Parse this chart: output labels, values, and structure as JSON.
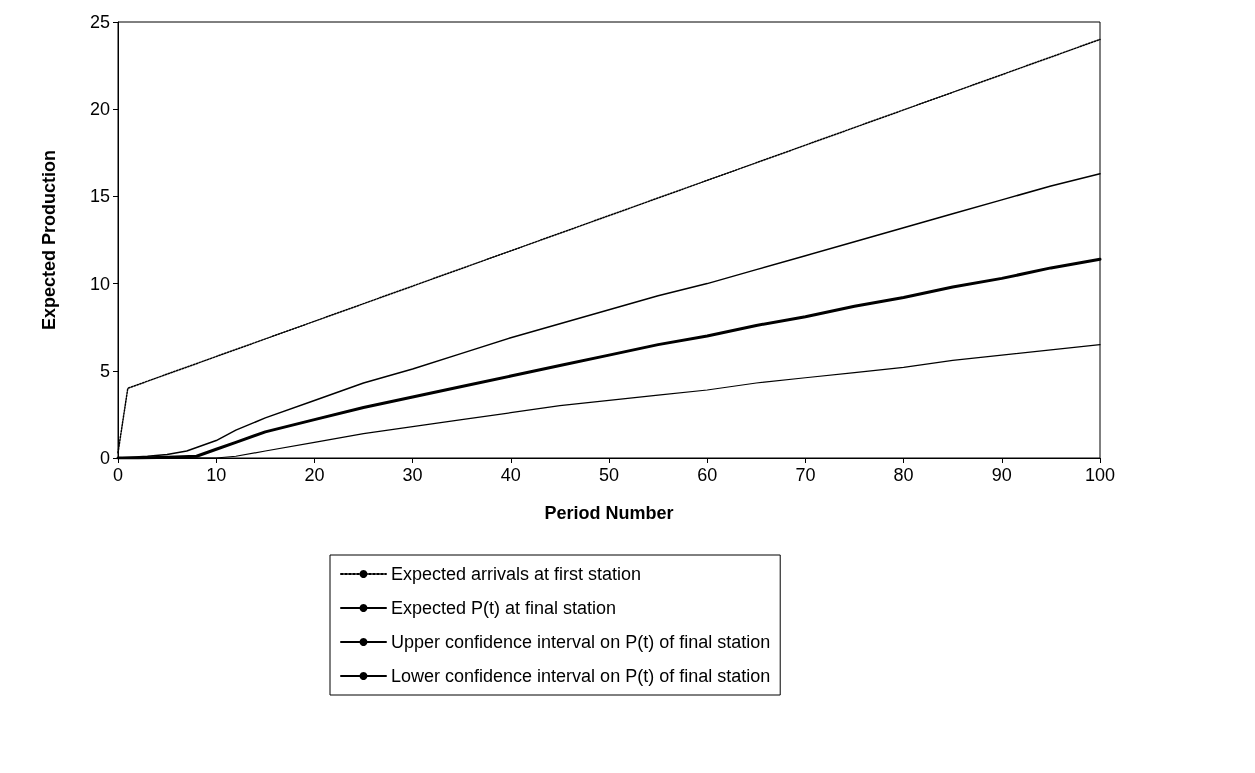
{
  "chart_data": {
    "type": "line",
    "xlabel": "Period Number",
    "ylabel": "Expected Production",
    "xlim": [
      0,
      100
    ],
    "xticks": [
      0,
      10,
      20,
      30,
      40,
      50,
      60,
      70,
      80,
      90,
      100
    ],
    "ylim": [
      0,
      25
    ],
    "yticks": [
      0,
      5,
      10,
      15,
      20,
      25
    ],
    "grid": false,
    "legend": "bottom",
    "marker": "none",
    "series": [
      {
        "name": "Expected arrivals at first station",
        "color": "#000000",
        "line_style": "dotted",
        "x": [
          0,
          1,
          100
        ],
        "values": [
          0.3,
          4,
          24
        ]
      },
      {
        "name": "Expected P(t) at final station",
        "color": "#000000",
        "line_style": "solid",
        "x": [
          0,
          2,
          5,
          8,
          10,
          12,
          15,
          20,
          25,
          30,
          35,
          40,
          45,
          50,
          55,
          60,
          65,
          70,
          75,
          80,
          85,
          90,
          95,
          100
        ],
        "values": [
          0,
          0,
          0.05,
          0.1,
          0.5,
          0.9,
          1.5,
          2.2,
          2.9,
          3.5,
          4.1,
          4.7,
          5.3,
          5.9,
          6.5,
          7.0,
          7.6,
          8.1,
          8.7,
          9.2,
          9.8,
          10.3,
          10.9,
          11.4
        ]
      },
      {
        "name": "Upper confidence interval on P(t) of final station",
        "color": "#000000",
        "line_style": "solid",
        "x": [
          0,
          3,
          5,
          7,
          10,
          12,
          15,
          20,
          25,
          30,
          35,
          40,
          45,
          50,
          55,
          60,
          65,
          70,
          75,
          80,
          85,
          90,
          95,
          100
        ],
        "values": [
          0,
          0.1,
          0.2,
          0.4,
          1.0,
          1.6,
          2.3,
          3.3,
          4.3,
          5.1,
          6.0,
          6.9,
          7.7,
          8.5,
          9.3,
          10.0,
          10.8,
          11.6,
          12.4,
          13.2,
          14.0,
          14.8,
          15.6,
          16.3
        ]
      },
      {
        "name": "Lower confidence interval on P(t) of final station",
        "color": "#000000",
        "line_style": "solid",
        "x": [
          0,
          10,
          12,
          15,
          20,
          25,
          30,
          35,
          40,
          45,
          50,
          55,
          60,
          65,
          70,
          75,
          80,
          85,
          90,
          95,
          100
        ],
        "values": [
          0,
          0,
          0.1,
          0.4,
          0.9,
          1.4,
          1.8,
          2.2,
          2.6,
          3.0,
          3.3,
          3.6,
          3.9,
          4.3,
          4.6,
          4.9,
          5.2,
          5.6,
          5.9,
          6.2,
          6.5
        ]
      }
    ]
  }
}
